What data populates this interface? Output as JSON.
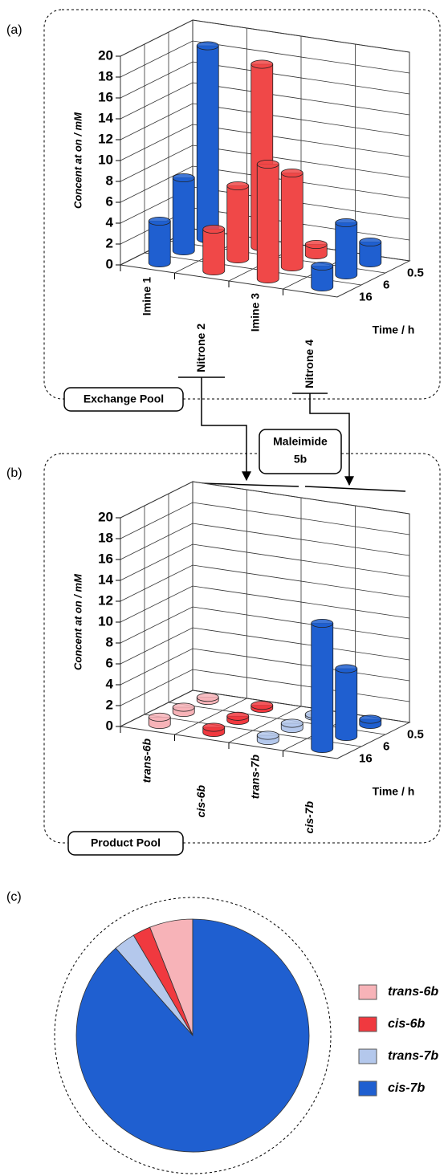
{
  "chart_data": [
    {
      "type": "bar3d",
      "panel_label": "(a)",
      "box_label": "Exchange Pool",
      "ylabel": "Concent at on / mM",
      "depth_label": "Time / h",
      "categories": [
        "Imine 1",
        "Nitrone 2",
        "Imine 3",
        "Nitrone 4"
      ],
      "depth_categories": [
        "0.5",
        "6",
        "16"
      ],
      "colors": [
        "#1f5fd0",
        "#f04848",
        "#f04848",
        "#1f5fd0"
      ],
      "values": [
        [
          18.5,
          17.5,
          1,
          2
        ],
        [
          7,
          7,
          9,
          5
        ],
        [
          4,
          4,
          11,
          2
        ]
      ],
      "ylim": [
        0,
        20
      ],
      "yticks": [
        0,
        2,
        4,
        6,
        8,
        10,
        12,
        14,
        16,
        18,
        20
      ],
      "grid": true
    },
    {
      "type": "bar3d",
      "panel_label": "(b)",
      "box_label": "Product Pool",
      "ylabel": "Concent at on / mM",
      "depth_label": "Time / h",
      "reagent": [
        "Maleimide",
        "5b"
      ],
      "categories": [
        "trans-6b",
        "cis-6b",
        "trans-7b",
        "cis-7b"
      ],
      "depth_categories": [
        "0.5",
        "6",
        "16"
      ],
      "colors": [
        "#f7b3b8",
        "#f0393f",
        "#b4c8ec",
        "#1f5fd0"
      ],
      "values": [
        [
          0.3,
          0.3,
          0.2,
          0.5
        ],
        [
          0.5,
          0.4,
          0.5,
          6.5
        ],
        [
          0.7,
          0.5,
          0.5,
          12
        ]
      ],
      "ylim": [
        0,
        20
      ],
      "yticks": [
        0,
        2,
        4,
        6,
        8,
        10,
        12,
        14,
        16,
        18,
        20
      ],
      "grid": true,
      "italic_categories": true
    },
    {
      "type": "pie",
      "panel_label": "(c)",
      "categories": [
        "trans-6b",
        "cis-6b",
        "trans-7b",
        "cis-7b"
      ],
      "values": [
        6,
        2.5,
        3,
        88.5
      ],
      "colors": [
        "#f7b3b8",
        "#f0393f",
        "#b4c8ec",
        "#1f5fd0"
      ],
      "counterclock": true
    }
  ]
}
